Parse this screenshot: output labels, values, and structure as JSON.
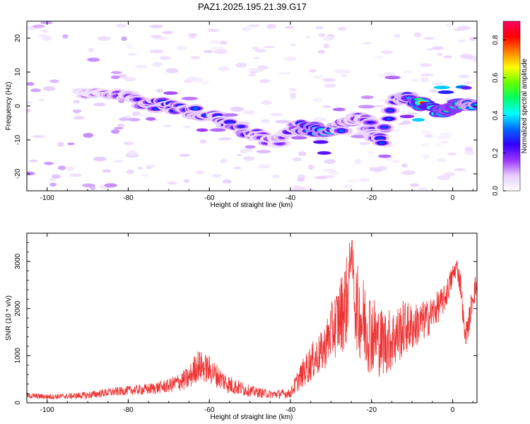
{
  "figure_title": "PAZ1.2025.195.21.39.G17",
  "chart_data": [
    {
      "type": "heatmap",
      "title": "",
      "xlabel": "Height of straight line (km)",
      "ylabel": "Frequency (Hz)",
      "xlim": [
        -105,
        6
      ],
      "ylim": [
        -25,
        25
      ],
      "xticks": [
        -100,
        -80,
        -60,
        -40,
        -20,
        0
      ],
      "yticks": [
        -20,
        -10,
        0,
        10,
        20
      ],
      "colorbar": {
        "label": "Normalized spectral amplitude",
        "range": [
          0,
          0.9
        ],
        "ticks": [
          0.0,
          0.2,
          0.4,
          0.6,
          0.8
        ],
        "colors": [
          "#ffffff",
          "#e6ccff",
          "#9933ff",
          "#3300ff",
          "#0066ff",
          "#00ffff",
          "#00ff66",
          "#66ff00",
          "#ffff00",
          "#ff8000",
          "#ff0000",
          "#ff0066"
        ]
      },
      "ridge": [
        {
          "x": -92,
          "y": 3.5,
          "a": 0.15
        },
        {
          "x": -87,
          "y": 3.5,
          "a": 0.18
        },
        {
          "x": -82,
          "y": 3,
          "a": 0.2
        },
        {
          "x": -78,
          "y": 2,
          "a": 0.22
        },
        {
          "x": -74,
          "y": 0.5,
          "a": 0.3
        },
        {
          "x": -70,
          "y": 0,
          "a": 0.33
        },
        {
          "x": -66,
          "y": -1,
          "a": 0.28
        },
        {
          "x": -62,
          "y": -2,
          "a": 0.35
        },
        {
          "x": -58,
          "y": -4,
          "a": 0.3
        },
        {
          "x": -54,
          "y": -6,
          "a": 0.28
        },
        {
          "x": -50,
          "y": -8,
          "a": 0.25
        },
        {
          "x": -46,
          "y": -10,
          "a": 0.2
        },
        {
          "x": -42,
          "y": -10,
          "a": 0.18
        },
        {
          "x": -38,
          "y": -6,
          "a": 0.3
        },
        {
          "x": -34,
          "y": -7,
          "a": 0.5
        },
        {
          "x": -31,
          "y": -7,
          "a": 0.48
        },
        {
          "x": -27,
          "y": -6,
          "a": 0.3
        },
        {
          "x": -24,
          "y": -4,
          "a": 0.25
        },
        {
          "x": -22,
          "y": -3,
          "a": 0.25
        },
        {
          "x": -20,
          "y": -7,
          "a": 0.25
        },
        {
          "x": -18,
          "y": -10,
          "a": 0.3
        },
        {
          "x": -14,
          "y": 3,
          "a": 0.3
        },
        {
          "x": -10,
          "y": 2,
          "a": 0.38
        },
        {
          "x": -7,
          "y": 0,
          "a": 0.85
        },
        {
          "x": -4,
          "y": -1,
          "a": 0.85
        },
        {
          "x": -1,
          "y": -1,
          "a": 0.6
        },
        {
          "x": 1,
          "y": 0,
          "a": 0.75
        },
        {
          "x": 4,
          "y": 0,
          "a": 0.45
        },
        {
          "x": 6,
          "y": 1,
          "a": 0.4
        }
      ]
    },
    {
      "type": "line",
      "title": "",
      "xlabel": "Height of straight line (km)",
      "ylabel": "SNR (10 * v/v)",
      "xlim": [
        -105,
        6
      ],
      "ylim": [
        0,
        3600
      ],
      "xticks": [
        -100,
        -80,
        -60,
        -40,
        -20,
        0
      ],
      "yticks": [
        0,
        1000,
        2000,
        3000
      ],
      "color": "#ee3333",
      "series": [
        {
          "x": [
            -105,
            -100,
            -95,
            -90,
            -85,
            -80,
            -75,
            -70,
            -65,
            -63,
            -60,
            -57,
            -55,
            -50,
            -45,
            -40,
            -38,
            -35,
            -32,
            -30,
            -28,
            -26,
            -25,
            -24,
            -22,
            -20,
            -18,
            -16,
            -14,
            -12,
            -10,
            -8,
            -6,
            -4,
            -2,
            0,
            1,
            2,
            3,
            4,
            5,
            6
          ],
          "y": [
            150,
            130,
            140,
            160,
            220,
            260,
            290,
            360,
            520,
            800,
            700,
            500,
            380,
            250,
            180,
            200,
            500,
            850,
            1100,
            1500,
            1800,
            2200,
            3300,
            2100,
            1700,
            1500,
            1300,
            1300,
            1400,
            1600,
            1600,
            1700,
            1800,
            2000,
            2200,
            2700,
            2900,
            2500,
            1400,
            1700,
            2300,
            2500
          ],
          "spread": [
            60,
            60,
            60,
            80,
            90,
            100,
            120,
            150,
            250,
            350,
            300,
            230,
            200,
            120,
            90,
            100,
            250,
            400,
            450,
            600,
            800,
            1000,
            300,
            900,
            1000,
            900,
            750,
            700,
            650,
            600,
            500,
            450,
            400,
            350,
            300,
            250,
            200,
            300,
            200,
            300,
            300,
            300
          ]
        }
      ]
    }
  ]
}
